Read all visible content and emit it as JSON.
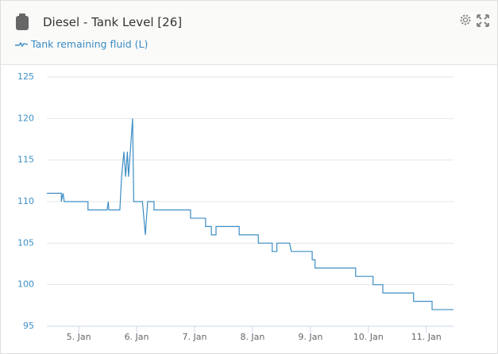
{
  "header": {
    "title": "Diesel - Tank Level [26]"
  },
  "chart_data": {
    "type": "line",
    "x": [
      4.45,
      4.7,
      4.7,
      4.73,
      4.75,
      5.16,
      5.16,
      5.49,
      5.51,
      5.52,
      5.71,
      5.74,
      5.78,
      5.81,
      5.84,
      5.86,
      5.89,
      5.93,
      5.95,
      6.1,
      6.15,
      6.19,
      6.3,
      6.3,
      6.93,
      6.93,
      7.19,
      7.19,
      7.29,
      7.29,
      7.37,
      7.37,
      7.77,
      7.77,
      8.1,
      8.1,
      8.34,
      8.34,
      8.42,
      8.42,
      8.64,
      8.67,
      9.03,
      9.03,
      9.08,
      9.08,
      9.78,
      9.78,
      10.08,
      10.08,
      10.25,
      10.25,
      10.78,
      10.78,
      11.1,
      11.1,
      11.47
    ],
    "series": [
      {
        "name": "Tank remaining fluid (L)",
        "color": "#3c8dc4",
        "values": [
          111,
          111,
          110,
          111,
          110,
          110,
          109,
          109,
          110,
          109,
          109,
          113,
          116,
          113,
          116,
          113,
          116,
          120,
          110,
          110,
          106,
          110,
          110,
          109,
          109,
          108,
          108,
          107,
          107,
          106,
          106,
          107,
          107,
          106,
          106,
          105,
          105,
          104,
          104,
          105,
          105,
          104,
          104,
          103,
          103,
          102,
          102,
          101,
          101,
          100,
          100,
          99,
          99,
          98,
          98,
          97,
          97
        ]
      }
    ],
    "xlim": [
      4.45,
      11.47
    ],
    "xticks": [
      {
        "value": 5,
        "label": "5. Jan"
      },
      {
        "value": 6,
        "label": "6. Jan"
      },
      {
        "value": 7,
        "label": "7. Jan"
      },
      {
        "value": 8,
        "label": "8. Jan"
      },
      {
        "value": 9,
        "label": "9. Jan"
      },
      {
        "value": 10,
        "label": "10. Jan"
      },
      {
        "value": 11,
        "label": "11. Jan"
      }
    ],
    "ylim": [
      95,
      125
    ],
    "yticks": [
      95,
      100,
      105,
      110,
      115,
      120,
      125
    ],
    "grid": true
  }
}
